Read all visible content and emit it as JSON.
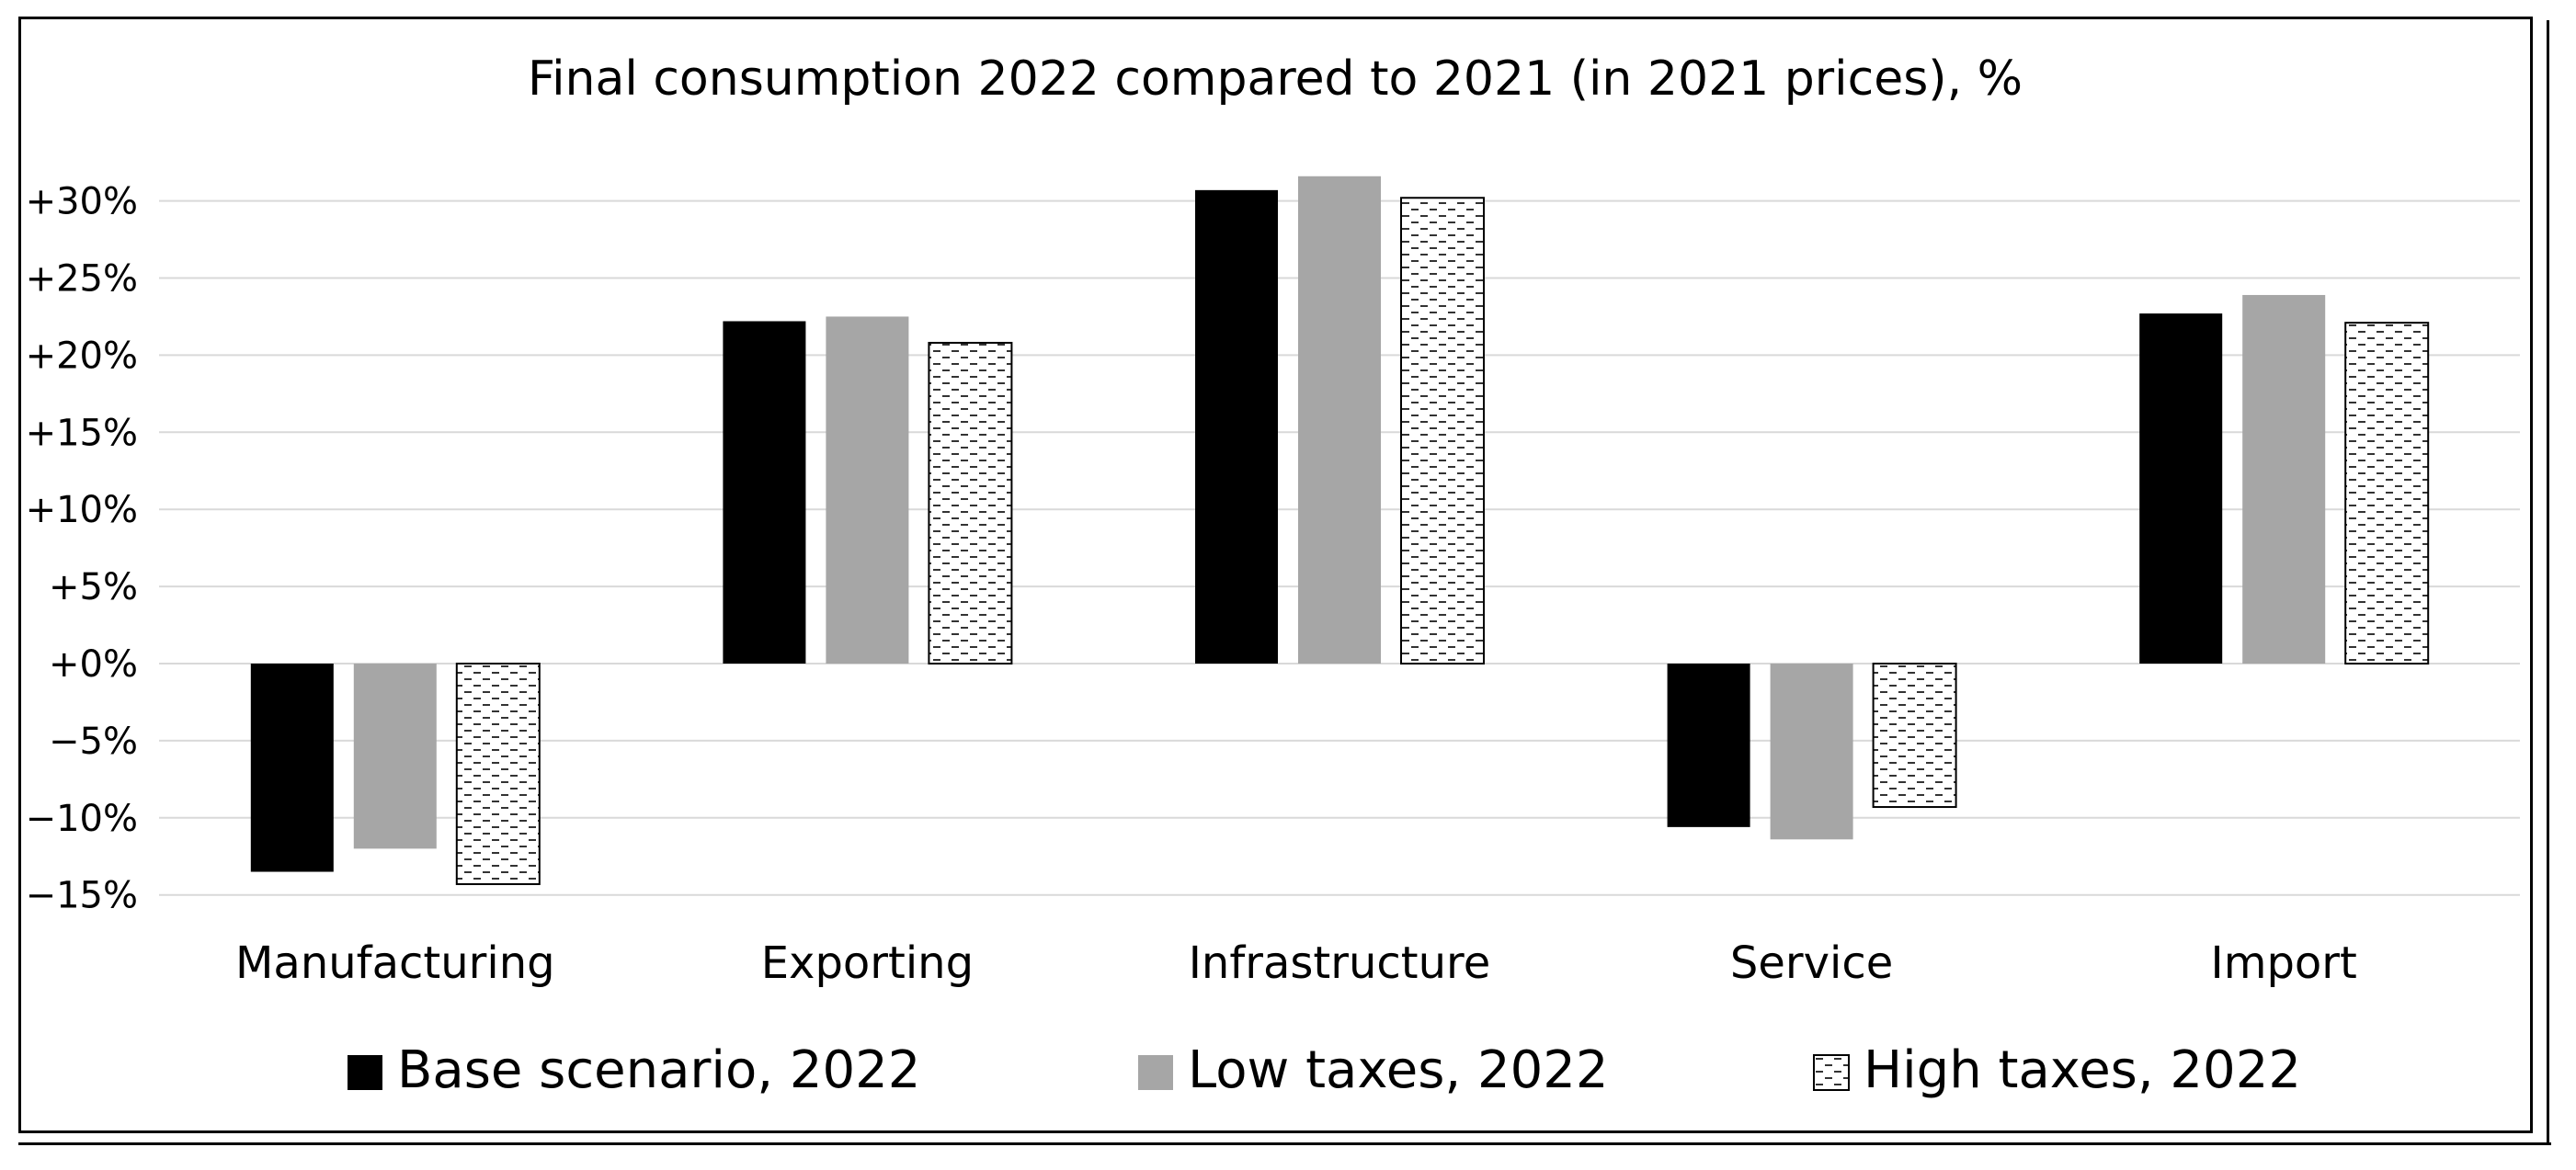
{
  "chart_data": {
    "type": "bar",
    "title": "Final consumption 2022 compared to 2021 (in 2021 prices), %",
    "categories": [
      "Manufacturing",
      "Exporting",
      "Infrastructure",
      "Service",
      "Import"
    ],
    "series": [
      {
        "name": "Base scenario, 2022",
        "values": [
          -13.5,
          22.2,
          30.7,
          -10.6,
          22.7
        ],
        "color": "#000000"
      },
      {
        "name": "Low taxes, 2022",
        "values": [
          -12.0,
          22.5,
          31.6,
          -11.4,
          23.9
        ],
        "color": "#a6a6a6"
      },
      {
        "name": "High taxes, 2022",
        "values": [
          -14.3,
          20.8,
          30.2,
          -9.3,
          22.1
        ],
        "color": "pattern-dashes"
      }
    ],
    "yticks": [
      30,
      25,
      20,
      15,
      10,
      5,
      0,
      -5,
      -10,
      -15
    ],
    "ytick_labels": [
      "+30%",
      "+25%",
      "+20%",
      "+15%",
      "+10%",
      "+5%",
      "+0%",
      "−5%",
      "−10%",
      "−15%"
    ],
    "ylim": [
      -15,
      30
    ],
    "grid": true,
    "legend_position": "bottom"
  }
}
